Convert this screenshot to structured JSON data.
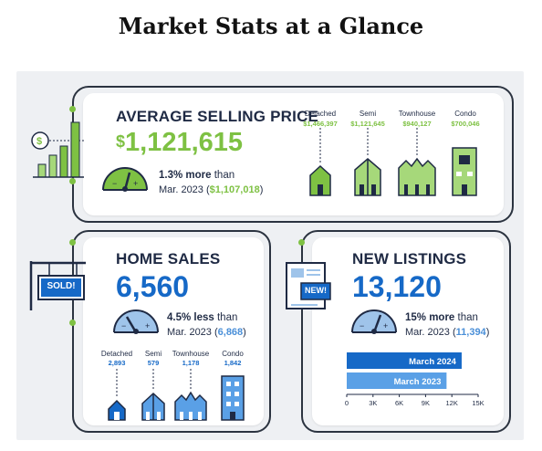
{
  "page": {
    "title": "Market Stats at a Glance"
  },
  "average_price": {
    "title": "AVERAGE SELLING PRICE",
    "currency_symbol": "$",
    "value": "1,121,615",
    "change_strong": "1.3% more",
    "change_rest": " than",
    "prev_prefix": "Mar. 2023 (",
    "prev_value": "$1,107,018",
    "prev_suffix": ")",
    "icon": "price-bars-icon",
    "types": [
      {
        "label": "Detached",
        "value": "$1,466,397"
      },
      {
        "label": "Semi",
        "value": "$1,121,645"
      },
      {
        "label": "Townhouse",
        "value": "$940,127"
      },
      {
        "label": "Condo",
        "value": "$700,046"
      }
    ]
  },
  "home_sales": {
    "title": "HOME SALES",
    "value": "6,560",
    "change_strong": "4.5% less",
    "change_rest": " than",
    "prev_prefix": "Mar. 2023 (",
    "prev_value": "6,868",
    "prev_suffix": ")",
    "sign_text": "SOLD!",
    "types": [
      {
        "label": "Detached",
        "value": "2,893"
      },
      {
        "label": "Semi",
        "value": "579"
      },
      {
        "label": "Townhouse",
        "value": "1,178"
      },
      {
        "label": "Condo",
        "value": "1,842"
      }
    ]
  },
  "new_listings": {
    "title": "NEW LISTINGS",
    "value": "13,120",
    "change_strong": "15% more",
    "change_rest": " than",
    "prev_prefix": "Mar. 2023 (",
    "prev_value": "11,394",
    "prev_suffix": ")",
    "badge_text": "NEW!",
    "chart_data": {
      "type": "bar",
      "orientation": "horizontal",
      "categories": [
        "March 2024",
        "March 2023"
      ],
      "values": [
        13120,
        11394
      ],
      "xlim": [
        0,
        15000
      ],
      "tick_labels": [
        "0",
        "3K",
        "6K",
        "9K",
        "12K",
        "15K"
      ],
      "colors": [
        "#1669c7",
        "#5aa0e6"
      ]
    }
  },
  "colors": {
    "green": "#7ec143",
    "blue": "#1669c7",
    "light_blue": "#5aa0e6",
    "navy": "#1f2a44",
    "background": "#eef0f3"
  }
}
